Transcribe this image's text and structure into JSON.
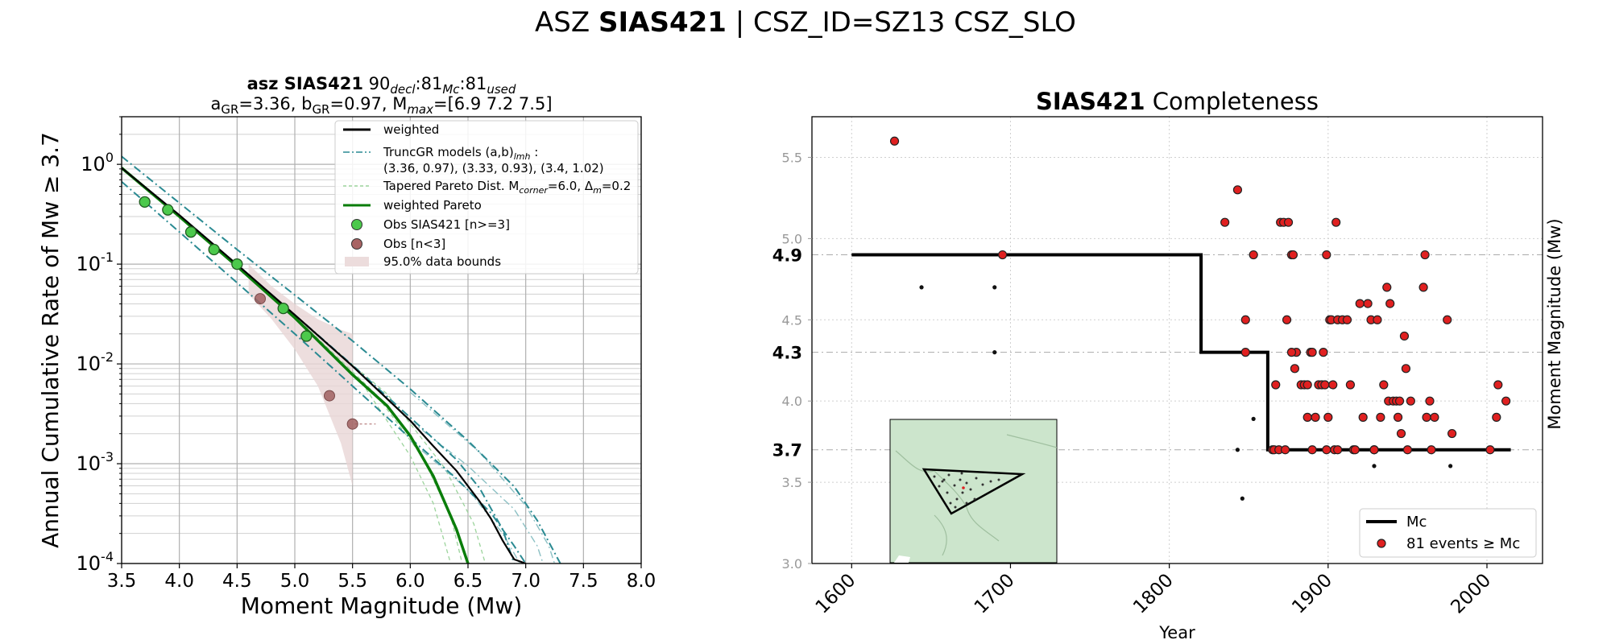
{
  "suptitle": {
    "prefix": "ASZ ",
    "bold": "SIAS421",
    "suffix": " | CSZ_ID=SZ13 CSZ_SLO"
  },
  "chart_data": [
    {
      "type": "line",
      "title_line1": {
        "bold": "asz SIAS421",
        "n_decl": "90",
        "decl_sub": "decl",
        "n_mc": "81",
        "mc_sub": "Mc",
        "n_used": "81",
        "used_sub": "used"
      },
      "title_line2": "aGR=3.36,  bGR=0.97, Mₘₐₓ=[6.9 7.2 7.5]",
      "title_line2_parts": {
        "a": "3.36",
        "b": "0.97",
        "mmax": "[6.9 7.2 7.5]"
      },
      "xlabel": "Moment Magnitude (Mw)",
      "ylabel": "Annual Cumulative Rate of Mw  ≥  3.7",
      "xlim": [
        3.5,
        8.0
      ],
      "ylim": [
        0.0001,
        3.0
      ],
      "yscale": "log",
      "xticks": [
        "3.5",
        "4.0",
        "4.5",
        "5.0",
        "5.5",
        "6.0",
        "6.5",
        "7.0",
        "7.5",
        "8.0"
      ],
      "yticks": [
        {
          "exp": 0,
          "value": 1
        },
        {
          "exp": -1,
          "value": 0.1
        },
        {
          "exp": -2,
          "value": 0.01
        },
        {
          "exp": -3,
          "value": 0.001
        },
        {
          "exp": -4,
          "value": 0.0001
        }
      ],
      "grid": true,
      "legend_position": "top-right",
      "legend": [
        {
          "label": "weighted",
          "style": "line",
          "color": "#000000"
        },
        {
          "label": "TruncGR models (a,b)",
          "sub": "lmh",
          "suffix": " :",
          "label2": " (3.36, 0.97), (3.33, 0.93), (3.4, 1.02)",
          "style": "dashdot",
          "color": "#5fa7ae"
        },
        {
          "label": "Tapered Pareto Dist. M",
          "sub": "corner",
          "suffix": "=6.0, Δ",
          "sub2": "m",
          "suffix2": "=0.2",
          "style": "dashed",
          "color": "#9cd49c"
        },
        {
          "label": "weighted Pareto",
          "style": "line",
          "color": "#0a7d0a"
        },
        {
          "label": "Obs SIAS421 [n>=3]",
          "style": "marker",
          "color": "#4cc94c"
        },
        {
          "label": "Obs [n<3]",
          "style": "marker",
          "color": "#a86464"
        },
        {
          "label": "95.0% data bounds",
          "style": "patch",
          "color": "#ecdcdc"
        }
      ],
      "series": [
        {
          "name": "Obs SIAS421 [n>=3]",
          "x": [
            3.7,
            3.9,
            4.1,
            4.3,
            4.5,
            4.9,
            5.1
          ],
          "y": [
            0.42,
            0.35,
            0.21,
            0.14,
            0.1,
            0.036,
            0.019
          ]
        },
        {
          "name": "Obs [n<3]",
          "x": [
            4.7,
            5.3,
            5.5
          ],
          "y": [
            0.045,
            0.0048,
            0.0025
          ]
        },
        {
          "name": "weighted",
          "x": [
            3.5,
            4.0,
            4.5,
            5.0,
            5.5,
            6.0,
            6.2,
            6.4,
            6.6,
            6.7,
            6.8,
            6.9,
            7.0
          ],
          "y": [
            0.92,
            0.31,
            0.099,
            0.031,
            0.0095,
            0.0027,
            0.0015,
            0.00085,
            0.00042,
            0.00028,
            0.00017,
            0.00011,
            0.0001
          ]
        },
        {
          "name": "weighted Pareto",
          "x": [
            3.5,
            4.0,
            4.5,
            5.0,
            5.5,
            5.8,
            6.0,
            6.2,
            6.4,
            6.5
          ],
          "y": [
            0.92,
            0.3,
            0.095,
            0.029,
            0.0078,
            0.0038,
            0.0019,
            0.00075,
            0.00022,
            0.0001
          ]
        },
        {
          "name": "TruncGR a=3.36 b=0.97",
          "x": [
            3.5,
            4.0,
            4.5,
            5.0,
            5.5,
            6.0,
            6.4,
            6.6,
            6.8,
            6.9
          ],
          "y": [
            0.92,
            0.31,
            0.099,
            0.031,
            0.0097,
            0.0029,
            0.0011,
            0.00057,
            0.00022,
            0.0001
          ]
        },
        {
          "name": "TruncGR a=3.33 b=0.93",
          "x": [
            3.5,
            4.0,
            4.5,
            5.0,
            5.5,
            6.0,
            6.5,
            6.9,
            7.1,
            7.3
          ],
          "y": [
            1.2,
            0.41,
            0.14,
            0.049,
            0.017,
            0.0056,
            0.0017,
            0.00059,
            0.00027,
            0.0001
          ]
        },
        {
          "name": "TruncGR a=3.4 b=1.02",
          "x": [
            3.5,
            4.0,
            4.5,
            5.0,
            5.5,
            6.0,
            6.4,
            6.7,
            6.9,
            7.0
          ],
          "y": [
            0.67,
            0.21,
            0.065,
            0.02,
            0.006,
            0.0018,
            0.00071,
            0.00032,
            0.00015,
            0.0001
          ]
        }
      ],
      "bounds_95": {
        "x": [
          4.6,
          4.8,
          5.0,
          5.2,
          5.4,
          5.5,
          5.5,
          5.4,
          5.2,
          5.0,
          4.8,
          4.6
        ],
        "upper": [
          0.1,
          0.06,
          0.04,
          0.028,
          0.022,
          0.02,
          0.0006,
          0.0016,
          0.006,
          0.014,
          0.028,
          0.05
        ]
      }
    },
    {
      "type": "scatter",
      "title": {
        "bold": "SIAS421",
        "rest": " Completeness"
      },
      "xlabel": "Year",
      "ylabel": "Moment Magnitude (Mw)",
      "xlim": [
        1575,
        2035
      ],
      "ylim": [
        3.0,
        5.75
      ],
      "xticks": [
        "1600",
        "1700",
        "1800",
        "1900",
        "2000"
      ],
      "yticks_grey": [
        "3.0",
        "3.5",
        "4.0",
        "4.5",
        "5.0",
        "5.5"
      ],
      "yticks_bold": [
        "4.9",
        "4.3",
        "3.7"
      ],
      "grid": true,
      "legend_position": "bottom-right",
      "legend": [
        {
          "label": "Mc",
          "style": "line",
          "color": "#000000"
        },
        {
          "label": "81 events ≥ Mc",
          "style": "marker",
          "color": "#e02020"
        }
      ],
      "mc_steps": {
        "x": [
          1600,
          1820,
          1820,
          1862,
          1862,
          2015
        ],
        "y": [
          4.9,
          4.9,
          4.3,
          4.3,
          3.7,
          3.7
        ]
      },
      "events_above_mc": {
        "x": [
          1627,
          1695,
          1835,
          1843,
          1848,
          1853,
          1848,
          1865,
          1867,
          1870,
          1872,
          1874,
          1875,
          1877,
          1878,
          1880,
          1877,
          1879,
          1883,
          1885,
          1887,
          1887,
          1889,
          1890,
          1892,
          1894,
          1896,
          1897,
          1898,
          1899,
          1900,
          1901,
          1902,
          1903,
          1904,
          1905,
          1906,
          1909,
          1912,
          1914,
          1916,
          1920,
          1922,
          1925,
          1927,
          1929,
          1931,
          1933,
          1935,
          1937,
          1938,
          1939,
          1941,
          1943,
          1944,
          1945,
          1946,
          1948,
          1949,
          1950,
          1952,
          1960,
          1961,
          1962,
          1964,
          1965,
          1967,
          1975,
          1978,
          2002,
          2006,
          2007,
          2012,
          1866,
          1869,
          1873,
          1890,
          1899,
          1906,
          1917,
          1929
        ],
        "y": [
          5.6,
          4.9,
          5.1,
          5.3,
          4.5,
          4.9,
          4.3,
          3.7,
          4.1,
          5.1,
          5.1,
          4.5,
          5.1,
          4.9,
          4.9,
          4.3,
          4.3,
          4.2,
          4.1,
          4.1,
          4.1,
          3.9,
          4.3,
          4.3,
          3.9,
          4.1,
          4.1,
          4.3,
          4.1,
          4.9,
          3.9,
          4.5,
          4.5,
          4.1,
          3.7,
          5.1,
          4.5,
          4.5,
          4.5,
          4.1,
          3.7,
          4.6,
          3.9,
          4.6,
          4.5,
          3.7,
          4.5,
          3.9,
          4.1,
          4.7,
          4.0,
          4.6,
          4.0,
          4.0,
          3.9,
          4.0,
          3.8,
          4.4,
          4.2,
          3.7,
          4.0,
          4.7,
          4.9,
          3.9,
          4.0,
          3.7,
          3.9,
          4.5,
          3.8,
          3.7,
          3.9,
          4.1,
          4.0,
          3.7,
          3.7,
          3.7,
          3.7,
          3.7,
          3.7,
          3.7,
          3.7
        ]
      },
      "events_below_mc": {
        "x": [
          1644,
          1690,
          1690,
          1694,
          1846,
          1843,
          1853,
          1929,
          1977
        ],
        "y": [
          4.7,
          4.7,
          4.3,
          4.9,
          3.4,
          3.7,
          3.89,
          3.6,
          3.6
        ]
      },
      "inset_map": {
        "polygon_shown": true,
        "background": "#cce5cc"
      }
    }
  ]
}
